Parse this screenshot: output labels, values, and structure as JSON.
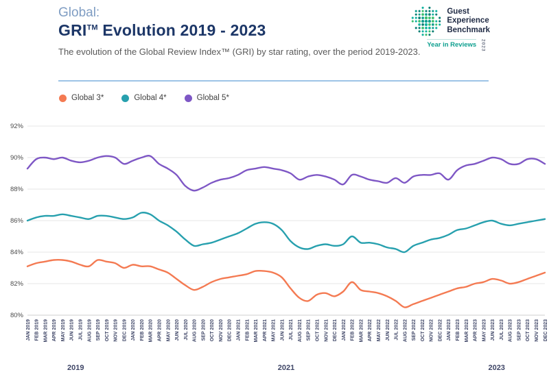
{
  "header": {
    "pretitle": "Global:",
    "title_gri": "GRI",
    "title_tm": "TM",
    "title_rest": " Evolution 2019 - 2023",
    "subtitle": "The evolution of the Global Review Index™ (GRI) by star rating, over the period 2019-2023."
  },
  "logo": {
    "lines": [
      "Guest",
      "Experience",
      "Benchmark"
    ],
    "tagline": "Year in Reviews",
    "year": "2023",
    "accent_color": "#0e9f8f"
  },
  "chart_data": {
    "type": "line",
    "title": "GRI Evolution 2019 - 2023",
    "xlabel": "",
    "ylabel": "",
    "ylim": [
      80,
      92
    ],
    "yticks": [
      "92%",
      "90%",
      "88%",
      "86%",
      "84%",
      "82%",
      "80%"
    ],
    "grid": true,
    "legend_position": "top",
    "year_labels": [
      "2019",
      "2021",
      "2023"
    ],
    "x": [
      "JAN 2019",
      "FEB 2019",
      "MAR 2019",
      "APR 2019",
      "MAY 2019",
      "JUN 2019",
      "JUL 2019",
      "AUG 2019",
      "SEP 2019",
      "OCT 2019",
      "NOV 2019",
      "DEC 2019",
      "JAN 2020",
      "FEB 2020",
      "MAR 2020",
      "APR 2020",
      "MAY 2020",
      "JUN 2020",
      "JUL 2020",
      "AUG 2020",
      "SEP 2020",
      "OCT 2020",
      "NOV 2020",
      "DEC 2020",
      "JAN 2021",
      "FEB 2021",
      "MAR 2021",
      "APR 2021",
      "MAY 2021",
      "JUN 2021",
      "JUL 2021",
      "AUG 2021",
      "SEP 2021",
      "OCT 2021",
      "NOV 2021",
      "DEC 2021",
      "JAN 2022",
      "FEB 2022",
      "MAR 2022",
      "APR 2022",
      "MAY 2022",
      "JUN 2022",
      "JUL 2022",
      "AUG 2022",
      "SEP 2022",
      "OCT 2022",
      "NOV 2022",
      "DEC 2022",
      "JAN 2023",
      "FEB 2023",
      "MAR 2023",
      "APR 2023",
      "MAY 2023",
      "JUN 2023",
      "JUL 2023",
      "AUG 2023",
      "SEP 2023",
      "OCT 2023",
      "NOV 2023",
      "DEC 2023"
    ],
    "series": [
      {
        "name": "Global 3*",
        "color": "#f47a52",
        "values": [
          83.1,
          83.3,
          83.4,
          83.5,
          83.5,
          83.4,
          83.2,
          83.1,
          83.5,
          83.4,
          83.3,
          83.0,
          83.2,
          83.1,
          83.1,
          82.9,
          82.7,
          82.3,
          81.9,
          81.6,
          81.8,
          82.1,
          82.3,
          82.4,
          82.5,
          82.6,
          82.8,
          82.8,
          82.7,
          82.4,
          81.7,
          81.1,
          80.9,
          81.3,
          81.4,
          81.2,
          81.5,
          82.1,
          81.6,
          81.5,
          81.4,
          81.2,
          80.9,
          80.5,
          80.7,
          80.9,
          81.1,
          81.3,
          81.5,
          81.7,
          81.8,
          82.0,
          82.1,
          82.3,
          82.2,
          82.0,
          82.1,
          82.3,
          82.5,
          82.7
        ]
      },
      {
        "name": "Global 4*",
        "color": "#27a0ae",
        "values": [
          86.0,
          86.2,
          86.3,
          86.3,
          86.4,
          86.3,
          86.2,
          86.1,
          86.3,
          86.3,
          86.2,
          86.1,
          86.2,
          86.5,
          86.4,
          86.0,
          85.7,
          85.3,
          84.8,
          84.4,
          84.5,
          84.6,
          84.8,
          85.0,
          85.2,
          85.5,
          85.8,
          85.9,
          85.8,
          85.4,
          84.7,
          84.3,
          84.2,
          84.4,
          84.5,
          84.4,
          84.5,
          85.0,
          84.6,
          84.6,
          84.5,
          84.3,
          84.2,
          84.0,
          84.4,
          84.6,
          84.8,
          84.9,
          85.1,
          85.4,
          85.5,
          85.7,
          85.9,
          86.0,
          85.8,
          85.7,
          85.8,
          85.9,
          86.0,
          86.1
        ]
      },
      {
        "name": "Global 5*",
        "color": "#7e57c5",
        "values": [
          89.3,
          89.9,
          90.0,
          89.9,
          90.0,
          89.8,
          89.7,
          89.8,
          90.0,
          90.1,
          90.0,
          89.6,
          89.8,
          90.0,
          90.1,
          89.6,
          89.3,
          88.9,
          88.2,
          87.9,
          88.1,
          88.4,
          88.6,
          88.7,
          88.9,
          89.2,
          89.3,
          89.4,
          89.3,
          89.2,
          89.0,
          88.6,
          88.8,
          88.9,
          88.8,
          88.6,
          88.3,
          88.9,
          88.8,
          88.6,
          88.5,
          88.4,
          88.7,
          88.4,
          88.8,
          88.9,
          88.9,
          89.0,
          88.6,
          89.2,
          89.5,
          89.6,
          89.8,
          90.0,
          89.9,
          89.6,
          89.6,
          89.9,
          89.9,
          89.6
        ]
      }
    ]
  }
}
